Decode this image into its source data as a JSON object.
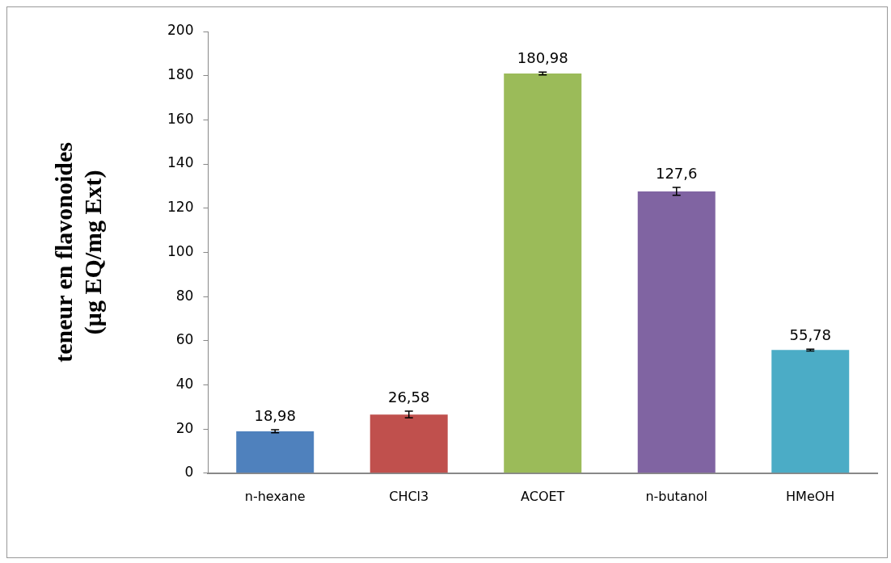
{
  "chart_data": {
    "type": "bar",
    "ylabel": "teneur en flavonoides\n(µg EQ/mg Ext)",
    "categories": [
      "n-hexane",
      "CHCl3",
      "ACOET",
      "n-butanol",
      "HMeOH"
    ],
    "values": [
      18.98,
      26.58,
      180.98,
      127.6,
      55.78
    ],
    "colors": [
      "#4f81bd",
      "#c0504d",
      "#9bbb59",
      "#8064a2",
      "#4bacc6"
    ],
    "errors": [
      0.7,
      1.5,
      0.6,
      1.8,
      0.4
    ],
    "value_labels": [
      "18,98",
      "26,58",
      "180,98",
      "127,6",
      "55,78"
    ],
    "ylim": [
      0,
      200
    ],
    "yticks": [
      0,
      20,
      40,
      60,
      80,
      100,
      120,
      140,
      160,
      180,
      200
    ],
    "grid": false,
    "legend": false
  }
}
